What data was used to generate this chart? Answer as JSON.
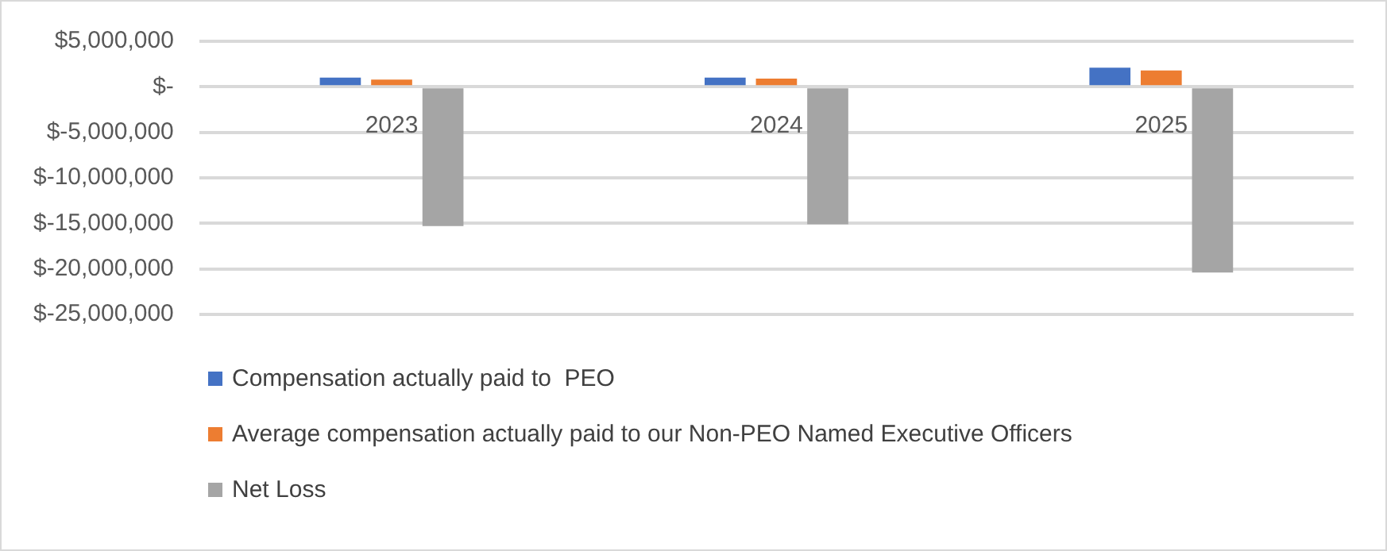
{
  "chart_data": {
    "type": "bar",
    "categories": [
      "2023",
      "2024",
      "2025"
    ],
    "series": [
      {
        "name": "Compensation actually paid to  PEO",
        "color": "#4472c4",
        "values": [
          1000000,
          1000000,
          2100000
        ]
      },
      {
        "name": "Average compensation actually paid to our Non-PEO Named Executive Officers",
        "color": "#ed7d31",
        "values": [
          800000,
          900000,
          1800000
        ]
      },
      {
        "name": "Net Loss",
        "color": "#a5a5a5",
        "values": [
          -15300000,
          -15100000,
          -20400000
        ]
      }
    ],
    "ylim": [
      -25000000,
      5000000
    ],
    "yticks": [
      {
        "value": 5000000,
        "label": "$5,000,000"
      },
      {
        "value": 0,
        "label": "$-"
      },
      {
        "value": -5000000,
        "label": "$-5,000,000"
      },
      {
        "value": -10000000,
        "label": "$-10,000,000"
      },
      {
        "value": -15000000,
        "label": "$-15,000,000"
      },
      {
        "value": -20000000,
        "label": "$-20,000,000"
      },
      {
        "value": -25000000,
        "label": "$-25,000,000"
      }
    ],
    "grid": "y",
    "legend": "bottom left"
  }
}
